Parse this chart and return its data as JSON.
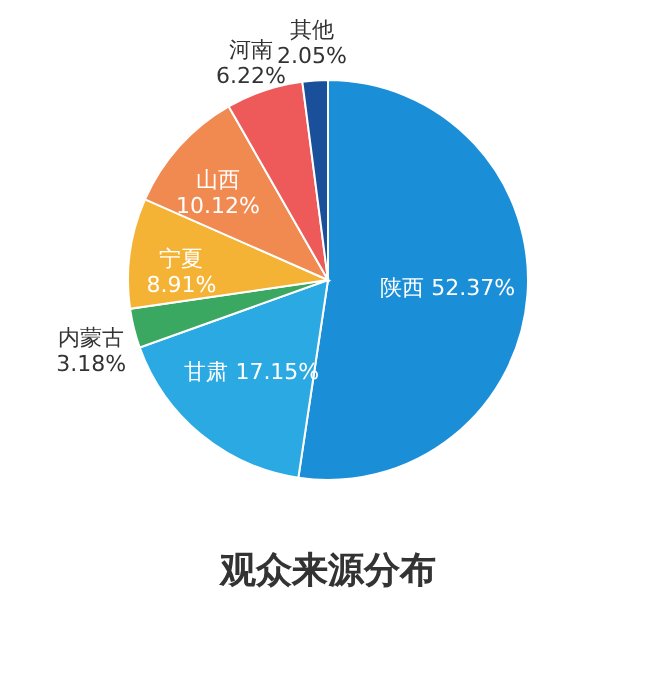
{
  "chart_data": {
    "type": "pie",
    "title": "观众来源分布",
    "categories": [
      "陕西",
      "甘肃",
      "内蒙古",
      "宁夏",
      "山西",
      "河南",
      "其他"
    ],
    "values": [
      52.37,
      17.15,
      3.18,
      8.91,
      10.12,
      6.22,
      2.05
    ],
    "value_labels": [
      "52.37%",
      "17.15%",
      "3.18%",
      "8.91%",
      "10.12%",
      "6.22%",
      "2.05%"
    ],
    "colors": [
      "#1a8fd8",
      "#2aa9e2",
      "#3aa860",
      "#f5b335",
      "#f08a50",
      "#ee5a5a",
      "#1a4f9a"
    ]
  }
}
